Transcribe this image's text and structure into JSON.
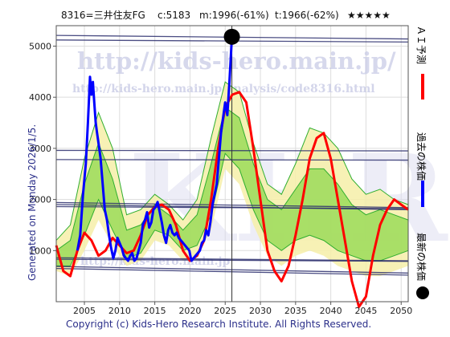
{
  "header": {
    "ticker": "8316=三井住友FG",
    "current": "c:5183",
    "max": "m:1996(-61%)",
    "trough": "t:1966(-62%)",
    "rating": "★★★★★"
  },
  "side_label": "Generated on Monday 2026/1/5.",
  "copyright": "Copyright (c) Kids-Hero Research Institute. All Rights Reserved.",
  "watermarks": {
    "url": "http://kids-hero.main.jp/",
    "analysis": "http://kids-hero.main.jp/analysis/code8316.html",
    "big": "KHRI",
    "lower": "http://kids-hero.main.jp"
  },
  "legend": {
    "ai": "ＡＩ予測",
    "past": "過去の株価",
    "latest": "最新の株価"
  },
  "colors": {
    "prediction": "#ff0000",
    "past": "#0000ff",
    "latest": "#000000",
    "band_outer": "#f6efa8",
    "band_inner": "#8fd84e",
    "band_lines": "#2fae2f",
    "hlines": "#2c2f6e",
    "border": "#555555"
  },
  "chart_data": {
    "type": "line",
    "title": "",
    "xlabel": "",
    "ylabel": "",
    "xlim": [
      2001,
      2051
    ],
    "ylim": [
      0,
      5400
    ],
    "xticks": [
      2005,
      2010,
      2015,
      2020,
      2025,
      2030,
      2035,
      2040,
      2045,
      2050
    ],
    "yticks": [
      1000,
      2000,
      3000,
      4000,
      5000
    ],
    "grid": true,
    "latest_point": {
      "x": 2025.95,
      "y": 5183
    },
    "reference_lines": [
      {
        "x0": 2001,
        "y0": 5210,
        "x1": 2051,
        "y1": 5140
      },
      {
        "x0": 2001,
        "y0": 5120,
        "x1": 2051,
        "y1": 5080
      },
      {
        "x0": 2001,
        "y0": 2960,
        "x1": 2051,
        "y1": 2950
      },
      {
        "x0": 2001,
        "y0": 2780,
        "x1": 2051,
        "y1": 2770
      },
      {
        "x0": 2001,
        "y0": 1940,
        "x1": 2051,
        "y1": 1840
      },
      {
        "x0": 2001,
        "y0": 1900,
        "x1": 2051,
        "y1": 1800
      },
      {
        "x0": 2001,
        "y0": 1860,
        "x1": 2051,
        "y1": 1820
      },
      {
        "x0": 2001,
        "y0": 860,
        "x1": 2051,
        "y1": 800
      },
      {
        "x0": 2001,
        "y0": 830,
        "x1": 2051,
        "y1": 790
      },
      {
        "x0": 2001,
        "y0": 690,
        "x1": 2051,
        "y1": 560
      },
      {
        "x0": 2001,
        "y0": 650,
        "x1": 2051,
        "y1": 520
      }
    ],
    "band_outer": [
      {
        "x": 2001,
        "lo": 600,
        "hi": 1200
      },
      {
        "x": 2003,
        "lo": 500,
        "hi": 1500
      },
      {
        "x": 2005,
        "lo": 1000,
        "hi": 2800
      },
      {
        "x": 2007,
        "lo": 1600,
        "hi": 3700
      },
      {
        "x": 2009,
        "lo": 1100,
        "hi": 3000
      },
      {
        "x": 2011,
        "lo": 700,
        "hi": 1700
      },
      {
        "x": 2013,
        "lo": 800,
        "hi": 1800
      },
      {
        "x": 2015,
        "lo": 1200,
        "hi": 2100
      },
      {
        "x": 2017,
        "lo": 1100,
        "hi": 1900
      },
      {
        "x": 2019,
        "lo": 800,
        "hi": 1600
      },
      {
        "x": 2021,
        "lo": 900,
        "hi": 2000
      },
      {
        "x": 2023,
        "lo": 1400,
        "hi": 3200
      },
      {
        "x": 2025,
        "lo": 2600,
        "hi": 4300
      },
      {
        "x": 2027,
        "lo": 2300,
        "hi": 4100
      },
      {
        "x": 2029,
        "lo": 1500,
        "hi": 3100
      },
      {
        "x": 2031,
        "lo": 900,
        "hi": 2300
      },
      {
        "x": 2033,
        "lo": 700,
        "hi": 2100
      },
      {
        "x": 2035,
        "lo": 900,
        "hi": 2700
      },
      {
        "x": 2037,
        "lo": 1000,
        "hi": 3400
      },
      {
        "x": 2039,
        "lo": 900,
        "hi": 3300
      },
      {
        "x": 2041,
        "lo": 700,
        "hi": 3000
      },
      {
        "x": 2043,
        "lo": 600,
        "hi": 2400
      },
      {
        "x": 2045,
        "lo": 500,
        "hi": 2100
      },
      {
        "x": 2047,
        "lo": 500,
        "hi": 2200
      },
      {
        "x": 2049,
        "lo": 600,
        "hi": 2000
      },
      {
        "x": 2051,
        "lo": 700,
        "hi": 1900
      }
    ],
    "band_inner": [
      {
        "x": 2001,
        "lo": 700,
        "hi": 1000
      },
      {
        "x": 2003,
        "lo": 700,
        "hi": 1200
      },
      {
        "x": 2005,
        "lo": 1300,
        "hi": 2300
      },
      {
        "x": 2007,
        "lo": 2000,
        "hi": 3100
      },
      {
        "x": 2009,
        "lo": 1400,
        "hi": 2400
      },
      {
        "x": 2011,
        "lo": 850,
        "hi": 1400
      },
      {
        "x": 2013,
        "lo": 950,
        "hi": 1500
      },
      {
        "x": 2015,
        "lo": 1400,
        "hi": 1900
      },
      {
        "x": 2017,
        "lo": 1300,
        "hi": 1700
      },
      {
        "x": 2019,
        "lo": 1000,
        "hi": 1400
      },
      {
        "x": 2021,
        "lo": 1100,
        "hi": 1700
      },
      {
        "x": 2023,
        "lo": 1700,
        "hi": 2700
      },
      {
        "x": 2025,
        "lo": 2900,
        "hi": 3800
      },
      {
        "x": 2027,
        "lo": 2600,
        "hi": 3600
      },
      {
        "x": 2029,
        "lo": 1800,
        "hi": 2700
      },
      {
        "x": 2031,
        "lo": 1200,
        "hi": 2000
      },
      {
        "x": 2033,
        "lo": 1000,
        "hi": 1800
      },
      {
        "x": 2035,
        "lo": 1200,
        "hi": 2200
      },
      {
        "x": 2037,
        "lo": 1300,
        "hi": 2600
      },
      {
        "x": 2039,
        "lo": 1200,
        "hi": 2600
      },
      {
        "x": 2041,
        "lo": 1000,
        "hi": 2300
      },
      {
        "x": 2043,
        "lo": 900,
        "hi": 1900
      },
      {
        "x": 2045,
        "lo": 800,
        "hi": 1700
      },
      {
        "x": 2047,
        "lo": 800,
        "hi": 1800
      },
      {
        "x": 2049,
        "lo": 900,
        "hi": 1700
      },
      {
        "x": 2051,
        "lo": 1000,
        "hi": 1600
      }
    ],
    "series": [
      {
        "name": "ＡＩ予測",
        "x": [
          2001,
          2002,
          2003,
          2004,
          2005,
          2006,
          2007,
          2008,
          2009,
          2010,
          2011,
          2012,
          2013,
          2014,
          2015,
          2016,
          2017,
          2018,
          2019,
          2020,
          2021,
          2022,
          2023,
          2024,
          2025,
          2026,
          2027,
          2028,
          2029,
          2030,
          2031,
          2032,
          2033,
          2034,
          2035,
          2036,
          2037,
          2038,
          2039,
          2040,
          2041,
          2042,
          2043,
          2044,
          2045,
          2046,
          2047,
          2048,
          2049,
          2050,
          2051
        ],
        "values": [
          1100,
          600,
          500,
          1000,
          1350,
          1200,
          900,
          1000,
          1250,
          1100,
          950,
          1000,
          1300,
          1700,
          1850,
          1900,
          1800,
          1500,
          1000,
          800,
          900,
          1200,
          2000,
          3000,
          3800,
          4050,
          4100,
          3900,
          3000,
          2000,
          1000,
          600,
          400,
          700,
          1300,
          2000,
          2800,
          3200,
          3300,
          2800,
          2000,
          1200,
          400,
          -100,
          100,
          900,
          1500,
          1800,
          2000,
          1900,
          1800
        ]
      },
      {
        "name": "過去の株価",
        "x": [
          2004.0,
          2004.4,
          2004.8,
          2005.2,
          2005.5,
          2005.8,
          2006.0,
          2006.2,
          2006.4,
          2006.6,
          2006.8,
          2007.0,
          2007.3,
          2007.6,
          2007.9,
          2008.2,
          2008.5,
          2008.8,
          2009.1,
          2009.4,
          2009.7,
          2010.0,
          2010.3,
          2010.6,
          2010.9,
          2011.2,
          2011.5,
          2011.8,
          2012.1,
          2012.4,
          2012.7,
          2013.0,
          2013.3,
          2013.6,
          2013.9,
          2014.2,
          2014.5,
          2014.8,
          2015.1,
          2015.4,
          2015.7,
          2016.0,
          2016.3,
          2016.6,
          2016.9,
          2017.2,
          2017.5,
          2017.8,
          2018.1,
          2018.4,
          2018.7,
          2019.0,
          2019.3,
          2019.6,
          2019.9,
          2020.2,
          2020.5,
          2020.8,
          2021.1,
          2021.4,
          2021.7,
          2022.0,
          2022.3,
          2022.6,
          2022.9,
          2023.2,
          2023.5,
          2023.8,
          2024.1,
          2024.4,
          2024.7,
          2025.0,
          2025.3,
          2025.6,
          2025.95
        ],
        "values": [
          1000,
          1300,
          2100,
          2700,
          3500,
          4400,
          4050,
          4300,
          3900,
          3500,
          3300,
          3100,
          2800,
          2300,
          1800,
          1600,
          1300,
          1050,
          850,
          1000,
          1250,
          1150,
          1050,
          900,
          850,
          800,
          900,
          950,
          800,
          850,
          1000,
          1150,
          1500,
          1600,
          1750,
          1450,
          1550,
          1800,
          1850,
          1950,
          1750,
          1550,
          1300,
          1150,
          1400,
          1500,
          1350,
          1300,
          1350,
          1250,
          1200,
          1150,
          1100,
          1050,
          1000,
          800,
          850,
          900,
          950,
          1000,
          1150,
          1200,
          1400,
          1300,
          1550,
          1900,
          2100,
          2300,
          2800,
          3300,
          3600,
          3900,
          3650,
          4300,
          5183
        ]
      }
    ]
  }
}
